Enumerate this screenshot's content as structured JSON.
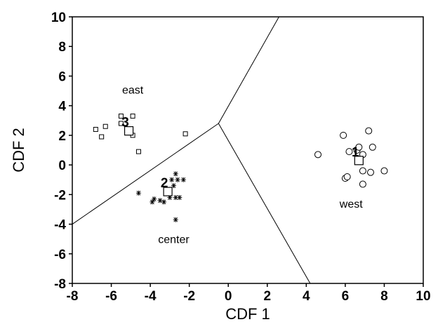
{
  "chart_data": {
    "type": "scatter",
    "title": "",
    "xlabel": "CDF 1",
    "ylabel": "CDF 2",
    "xlim": [
      -8,
      10
    ],
    "ylim": [
      -8,
      10
    ],
    "x_ticks": [
      "-8",
      "-6",
      "-4",
      "-2",
      "0",
      "2",
      "4",
      "6",
      "8",
      "10"
    ],
    "y_ticks": [
      "10",
      "8",
      "6",
      "4",
      "2",
      "0",
      "-2",
      "-4",
      "-6",
      "-8"
    ],
    "grid": false,
    "region_labels": [
      {
        "text": "east",
        "x": -4.9,
        "y": 5.1
      },
      {
        "text": "center",
        "x": -2.8,
        "y": -5.0
      },
      {
        "text": "west",
        "x": 6.3,
        "y": -2.6
      }
    ],
    "boundaries": [
      {
        "from": [
          -0.5,
          2.8
        ],
        "to": [
          2.6,
          10
        ]
      },
      {
        "from": [
          -0.5,
          2.8
        ],
        "to": [
          -8,
          -4
        ]
      },
      {
        "from": [
          -0.5,
          2.8
        ],
        "to": [
          4.2,
          -8
        ]
      }
    ],
    "series": [
      {
        "marker": "small-square",
        "points": [
          [
            -6.8,
            2.4
          ],
          [
            -6.3,
            2.6
          ],
          [
            -6.5,
            1.9
          ],
          [
            -5.5,
            3.3
          ],
          [
            -4.9,
            3.3
          ],
          [
            -4.9,
            2.0
          ],
          [
            -4.6,
            0.9
          ],
          [
            -2.2,
            2.1
          ],
          [
            -5.5,
            2.8
          ]
        ]
      },
      {
        "marker": "asterisk",
        "points": [
          [
            -4.6,
            -1.9
          ],
          [
            -3.8,
            -2.3
          ],
          [
            -3.5,
            -2.4
          ],
          [
            -3.3,
            -2.5
          ],
          [
            -3.9,
            -2.5
          ],
          [
            -3.0,
            -2.2
          ],
          [
            -2.7,
            -2.2
          ],
          [
            -2.5,
            -2.2
          ],
          [
            -2.8,
            -1.4
          ],
          [
            -2.9,
            -1.0
          ],
          [
            -2.6,
            -1.0
          ],
          [
            -2.3,
            -1.0
          ],
          [
            -2.7,
            -0.6
          ],
          [
            -2.7,
            -3.7
          ],
          [
            -3.0,
            -1.7
          ]
        ]
      },
      {
        "marker": "circle",
        "points": [
          [
            4.6,
            0.7
          ],
          [
            5.9,
            2.0
          ],
          [
            6.2,
            0.9
          ],
          [
            6.6,
            1.0
          ],
          [
            6.9,
            0.7
          ],
          [
            7.2,
            2.3
          ],
          [
            7.4,
            1.2
          ],
          [
            6.0,
            -0.9
          ],
          [
            6.1,
            -0.8
          ],
          [
            6.9,
            -0.4
          ],
          [
            7.3,
            -0.5
          ],
          [
            8.0,
            -0.4
          ],
          [
            6.9,
            -1.3
          ],
          [
            6.7,
            1.2
          ]
        ]
      }
    ],
    "centroids": [
      {
        "label": "1",
        "x": 6.7,
        "y": 0.3
      },
      {
        "label": "2",
        "x": -3.1,
        "y": -1.8
      },
      {
        "label": "3",
        "x": -5.1,
        "y": 2.3
      }
    ]
  }
}
